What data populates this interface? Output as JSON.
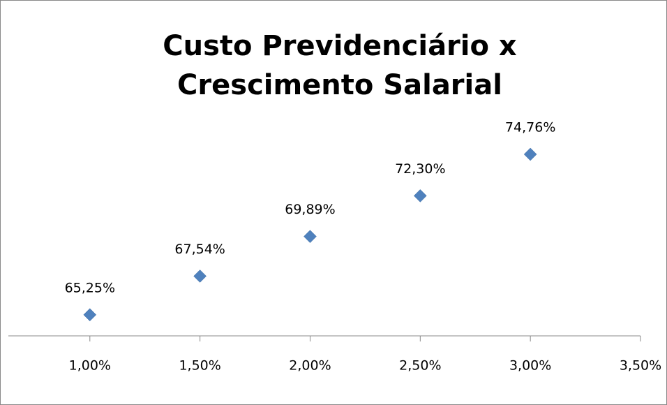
{
  "chart_data": {
    "type": "scatter",
    "title": "Custo Previdenciário x Crescimento Salarial",
    "x": [
      1,
      1.5,
      2,
      2.5,
      3
    ],
    "values": [
      65.25,
      67.54,
      69.89,
      72.3,
      74.76
    ],
    "value_labels": [
      "65,25%",
      "67,54%",
      "69,89%",
      "72,30%",
      "74,76%"
    ],
    "color": "#4f81bd",
    "xlim": [
      0.63,
      3.5
    ],
    "xticks": [
      {
        "value": 1,
        "label": "1,00%"
      },
      {
        "value": 1.5,
        "label": "1,50%"
      },
      {
        "value": 2,
        "label": "2,00%"
      },
      {
        "value": 2.5,
        "label": "2,50%"
      },
      {
        "value": 3,
        "label": "3,00%"
      },
      {
        "value": 3.5,
        "label": "3,50%"
      }
    ],
    "ylim": [
      64,
      76
    ]
  }
}
